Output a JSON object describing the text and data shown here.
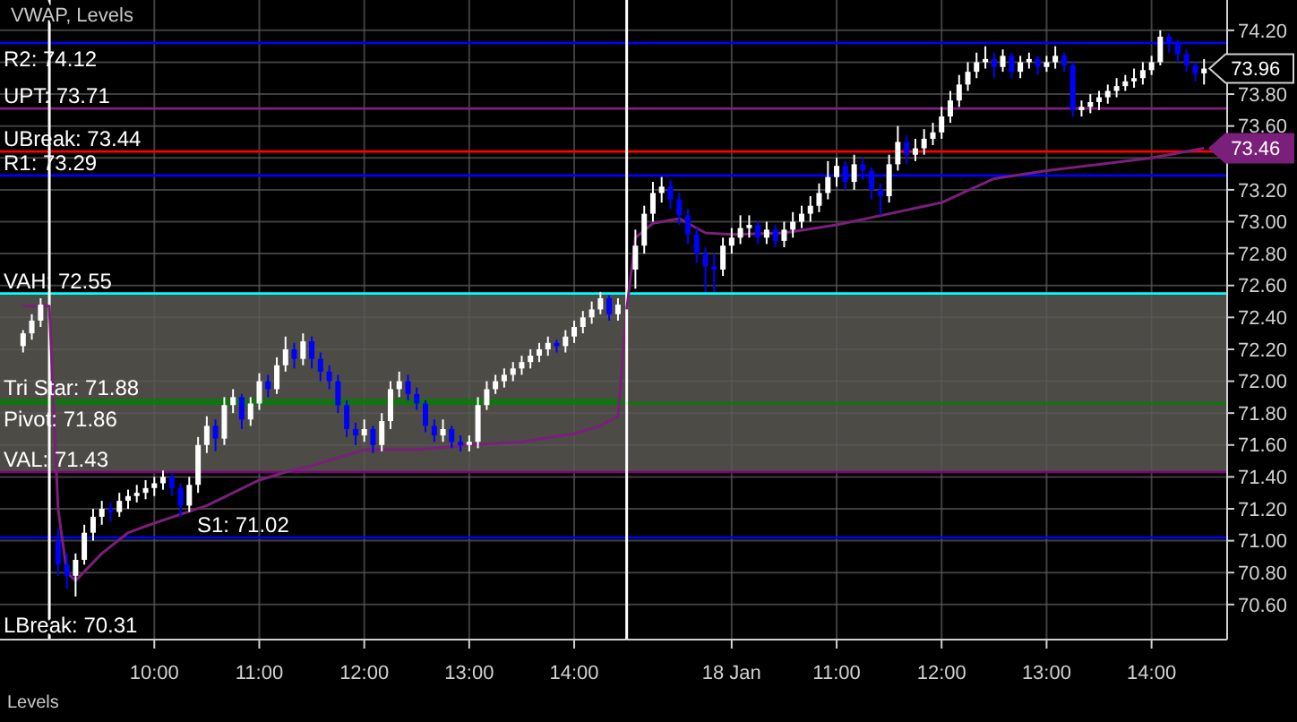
{
  "chart_data": [
    {
      "type": "candlestick",
      "title": "VWAP, Levels",
      "x": [
        8.75,
        8.833,
        8.917,
        9.083,
        9.167,
        9.25,
        9.333,
        9.417,
        9.5,
        9.583,
        9.667,
        9.75,
        9.833,
        9.917,
        10,
        10.083,
        10.167,
        10.25,
        10.333,
        10.417,
        10.5,
        10.583,
        10.667,
        10.75,
        10.833,
        10.917,
        11,
        11.083,
        11.167,
        11.25,
        11.333,
        11.417,
        11.5,
        11.583,
        11.667,
        11.75,
        11.833,
        11.917,
        12,
        12.083,
        12.167,
        12.25,
        12.333,
        12.417,
        12.5,
        12.583,
        12.667,
        12.75,
        12.833,
        12.917,
        13,
        13.083,
        13.167,
        13.25,
        13.333,
        13.417,
        13.5,
        13.583,
        13.667,
        13.75,
        13.833,
        13.917,
        14,
        14.083,
        14.167,
        14.25,
        14.333,
        14.417
      ],
      "ohlc": [
        [
          72.22,
          72.32,
          72.18,
          72.3
        ],
        [
          72.3,
          72.42,
          72.26,
          72.38
        ],
        [
          72.38,
          72.52,
          72.34,
          72.48
        ],
        [
          71.0,
          71.08,
          70.78,
          70.85
        ],
        [
          70.85,
          70.92,
          70.7,
          70.78
        ],
        [
          70.78,
          70.92,
          70.65,
          70.88
        ],
        [
          70.88,
          71.1,
          70.85,
          71.05
        ],
        [
          71.05,
          71.2,
          71.0,
          71.15
        ],
        [
          71.15,
          71.25,
          71.1,
          71.2
        ],
        [
          71.2,
          71.24,
          71.12,
          71.18
        ],
        [
          71.18,
          71.3,
          71.15,
          71.25
        ],
        [
          71.25,
          71.32,
          71.2,
          71.28
        ],
        [
          71.28,
          71.35,
          71.24,
          71.3
        ],
        [
          71.3,
          71.38,
          71.26,
          71.33
        ],
        [
          71.33,
          71.4,
          71.28,
          71.36
        ],
        [
          71.36,
          71.44,
          71.32,
          71.4
        ],
        [
          71.4,
          71.42,
          71.28,
          71.33
        ],
        [
          71.33,
          71.36,
          71.15,
          71.22
        ],
        [
          71.22,
          71.4,
          71.18,
          71.35
        ],
        [
          71.35,
          71.65,
          71.3,
          71.6
        ],
        [
          71.6,
          71.78,
          71.55,
          71.72
        ],
        [
          71.72,
          71.76,
          71.56,
          71.64
        ],
        [
          71.64,
          71.9,
          71.6,
          71.85
        ],
        [
          71.85,
          71.95,
          71.8,
          71.9
        ],
        [
          71.9,
          71.92,
          71.7,
          71.76
        ],
        [
          71.76,
          71.9,
          71.72,
          71.86
        ],
        [
          71.86,
          72.05,
          71.82,
          72.0
        ],
        [
          72.0,
          72.04,
          71.9,
          71.95
        ],
        [
          71.95,
          72.15,
          71.92,
          72.1
        ],
        [
          72.1,
          72.28,
          72.06,
          72.2
        ],
        [
          72.2,
          72.24,
          72.08,
          72.14
        ],
        [
          72.14,
          72.3,
          72.1,
          72.25
        ],
        [
          72.25,
          72.28,
          72.08,
          72.14
        ],
        [
          72.14,
          72.18,
          72.0,
          72.06
        ],
        [
          72.06,
          72.1,
          71.95,
          72.0
        ],
        [
          72.0,
          72.04,
          71.8,
          71.85
        ],
        [
          71.85,
          71.88,
          71.65,
          71.7
        ],
        [
          71.7,
          71.74,
          71.6,
          71.66
        ],
        [
          71.66,
          71.76,
          71.62,
          71.7
        ],
        [
          71.7,
          71.72,
          71.55,
          71.6
        ],
        [
          71.6,
          71.8,
          71.56,
          71.75
        ],
        [
          71.75,
          72.0,
          71.7,
          71.95
        ],
        [
          71.95,
          72.06,
          71.9,
          72.0
        ],
        [
          72.0,
          72.04,
          71.88,
          71.92
        ],
        [
          71.92,
          71.96,
          71.82,
          71.86
        ],
        [
          71.86,
          71.88,
          71.68,
          71.72
        ],
        [
          71.72,
          71.76,
          71.62,
          71.66
        ],
        [
          71.66,
          71.76,
          71.62,
          71.7
        ],
        [
          71.7,
          71.72,
          71.58,
          71.62
        ],
        [
          71.62,
          71.66,
          71.56,
          71.6
        ],
        [
          71.6,
          71.66,
          71.56,
          71.62
        ],
        [
          71.62,
          71.9,
          71.58,
          71.85
        ],
        [
          71.85,
          72.0,
          71.82,
          71.95
        ],
        [
          71.95,
          72.04,
          71.92,
          72.0
        ],
        [
          72.0,
          72.08,
          71.96,
          72.04
        ],
        [
          72.04,
          72.12,
          72.0,
          72.08
        ],
        [
          72.08,
          72.16,
          72.04,
          72.12
        ],
        [
          72.12,
          72.2,
          72.08,
          72.16
        ],
        [
          72.16,
          72.24,
          72.12,
          72.2
        ],
        [
          72.2,
          72.28,
          72.16,
          72.24
        ],
        [
          72.24,
          72.26,
          72.18,
          72.22
        ],
        [
          72.22,
          72.32,
          72.18,
          72.28
        ],
        [
          72.28,
          72.38,
          72.24,
          72.34
        ],
        [
          72.34,
          72.44,
          72.3,
          72.4
        ],
        [
          72.4,
          72.5,
          72.36,
          72.45
        ],
        [
          72.45,
          72.56,
          72.42,
          72.52
        ],
        [
          72.52,
          72.54,
          72.38,
          72.42
        ],
        [
          72.42,
          72.52,
          72.38,
          72.48
        ]
      ],
      "colors": [
        "#ffffff",
        "#ffffff",
        "#ffffff",
        "#0000ff",
        "#0000ff",
        "#ffffff",
        "#ffffff",
        "#ffffff",
        "#ffffff",
        "#0000ff",
        "#ffffff",
        "#ffffff",
        "#ffffff",
        "#ffffff",
        "#ffffff",
        "#ffffff",
        "#0000ff",
        "#0000ff",
        "#ffffff",
        "#ffffff",
        "#ffffff",
        "#0000ff",
        "#ffffff",
        "#ffffff",
        "#0000ff",
        "#ffffff",
        "#ffffff",
        "#0000ff",
        "#ffffff",
        "#ffffff",
        "#0000ff",
        "#ffffff",
        "#0000ff",
        "#0000ff",
        "#0000ff",
        "#0000ff",
        "#0000ff",
        "#0000ff",
        "#ffffff",
        "#0000ff",
        "#ffffff",
        "#ffffff",
        "#ffffff",
        "#0000ff",
        "#0000ff",
        "#0000ff",
        "#0000ff",
        "#ffffff",
        "#0000ff",
        "#0000ff",
        "#ffffff",
        "#ffffff",
        "#ffffff",
        "#ffffff",
        "#ffffff",
        "#ffffff",
        "#ffffff",
        "#ffffff",
        "#ffffff",
        "#ffffff",
        "#0000ff",
        "#ffffff",
        "#ffffff",
        "#ffffff",
        "#ffffff",
        "#ffffff",
        "#0000ff",
        "#ffffff"
      ],
      "series": [
        {
          "type": "line",
          "color": "#7a1f7a",
          "x": [
            8.75,
            8.917,
            9.0,
            9.083,
            9.167,
            9.25,
            9.5,
            9.75,
            10,
            10.5,
            11,
            11.25,
            11.5,
            12,
            12.5,
            13,
            13.5,
            14,
            14.25,
            14.417,
            14.5
          ],
          "values": [
            72.47,
            72.47,
            72.47,
            71.2,
            70.8,
            70.75,
            70.92,
            71.05,
            71.11,
            71.22,
            71.38,
            71.43,
            71.47,
            71.57,
            71.57,
            71.6,
            71.62,
            71.67,
            71.72,
            71.78,
            72.45
          ]
        }
      ],
      "xlim": [
        8.53,
        14.5
      ],
      "xticks": [
        {
          "value": 10,
          "label": "10:00"
        },
        {
          "value": 11,
          "label": "11:00"
        },
        {
          "value": 12,
          "label": "12:00"
        },
        {
          "value": 13,
          "label": "13:00"
        },
        {
          "value": 14,
          "label": "14:00"
        }
      ],
      "ylim": [
        70.38,
        74.39
      ],
      "yticks": [
        70.6,
        70.8,
        71,
        71.2,
        71.4,
        71.6,
        71.8,
        72,
        72.2,
        72.4,
        72.6,
        72.8,
        73,
        73.2,
        73.4,
        73.6,
        73.8,
        74,
        74.2
      ],
      "tick_labels": "x",
      "grid": true,
      "bands": [
        {
          "axis": "y",
          "from": 71.43,
          "to": 72.55,
          "color": "#4c4b45"
        }
      ],
      "ref_lines": [
        {
          "axis": "y",
          "value": 74.12,
          "label": "R2: 74.12",
          "color": "#0000ff"
        },
        {
          "axis": "y",
          "value": 73.71,
          "label": "UPT: 73.71",
          "color": "#7f1f7f"
        },
        {
          "axis": "y",
          "value": 73.44,
          "label": "UBreak: 73.44",
          "color": "#ff0000"
        },
        {
          "axis": "y",
          "value": 73.29,
          "label": "R1: 73.29",
          "color": "#0000ff"
        },
        {
          "axis": "y",
          "value": 72.55,
          "label": "VAH: 72.55",
          "color": "#00ffff"
        },
        {
          "axis": "y",
          "value": 71.88,
          "label": "Tri Star: 71.88",
          "color": "#008000"
        },
        {
          "axis": "y",
          "value": 71.86,
          "label": "Pivot: 71.86",
          "color": "#008000"
        },
        {
          "axis": "y",
          "value": 71.43,
          "label": "VAL: 71.43",
          "color": "#800080"
        },
        {
          "axis": "y",
          "value": 71.02,
          "label": "S1: 71.02",
          "color": "#0000ff"
        },
        {
          "axis": "x",
          "value": 9.0,
          "color": "#ffffff"
        }
      ],
      "annotations": [
        "LBreak: 70.31",
        "Levels"
      ]
    },
    {
      "type": "candlestick",
      "x": [
        9.083,
        9.167,
        9.25,
        9.333,
        9.417,
        9.5,
        9.583,
        9.667,
        9.75,
        9.833,
        9.917,
        10,
        10.083,
        10.167,
        10.25,
        10.333,
        10.417,
        10.5,
        10.583,
        10.667,
        10.75,
        10.833,
        10.917,
        11,
        11.083,
        11.167,
        11.25,
        11.333,
        11.417,
        11.5,
        11.583,
        11.667,
        11.75,
        11.833,
        11.917,
        12,
        12.083,
        12.167,
        12.25,
        12.333,
        12.417,
        12.5,
        12.583,
        12.667,
        12.75,
        12.833,
        12.917,
        13,
        13.083,
        13.167,
        13.25,
        13.333,
        13.417,
        13.5,
        13.583,
        13.667,
        13.75,
        13.833,
        13.917,
        14,
        14.083,
        14.167,
        14.25,
        14.333,
        14.417,
        14.5
      ],
      "ohlc": [
        [
          72.7,
          72.95,
          72.58,
          72.85
        ],
        [
          72.85,
          73.1,
          72.8,
          73.05
        ],
        [
          73.05,
          73.25,
          73.0,
          73.18
        ],
        [
          73.18,
          73.28,
          73.12,
          73.22
        ],
        [
          73.22,
          73.26,
          73.08,
          73.14
        ],
        [
          73.14,
          73.18,
          72.98,
          73.04
        ],
        [
          73.04,
          73.08,
          72.86,
          72.92
        ],
        [
          72.92,
          72.96,
          72.74,
          72.8
        ],
        [
          72.8,
          72.84,
          72.56,
          72.72
        ],
        [
          72.72,
          72.8,
          72.56,
          72.7
        ],
        [
          72.7,
          72.9,
          72.66,
          72.85
        ],
        [
          72.85,
          72.96,
          72.8,
          72.9
        ],
        [
          72.9,
          73.04,
          72.86,
          72.96
        ],
        [
          72.96,
          73.04,
          72.9,
          72.98
        ],
        [
          72.98,
          73.0,
          72.86,
          72.9
        ],
        [
          72.9,
          73.0,
          72.86,
          72.95
        ],
        [
          72.95,
          72.98,
          72.84,
          72.88
        ],
        [
          72.88,
          73.0,
          72.84,
          72.95
        ],
        [
          72.95,
          73.06,
          72.9,
          73.0
        ],
        [
          73.0,
          73.1,
          72.96,
          73.05
        ],
        [
          73.05,
          73.16,
          73.0,
          73.1
        ],
        [
          73.1,
          73.24,
          73.06,
          73.18
        ],
        [
          73.18,
          73.38,
          73.14,
          73.28
        ],
        [
          73.28,
          73.4,
          73.22,
          73.35
        ],
        [
          73.35,
          73.38,
          73.2,
          73.25
        ],
        [
          73.25,
          73.42,
          73.2,
          73.36
        ],
        [
          73.36,
          73.4,
          73.26,
          73.32
        ],
        [
          73.32,
          73.34,
          73.14,
          73.2
        ],
        [
          73.2,
          73.24,
          73.04,
          73.16
        ],
        [
          73.16,
          73.42,
          73.12,
          73.36
        ],
        [
          73.36,
          73.6,
          73.32,
          73.5
        ],
        [
          73.5,
          73.54,
          73.36,
          73.42
        ],
        [
          73.42,
          73.52,
          73.38,
          73.46
        ],
        [
          73.46,
          73.58,
          73.42,
          73.52
        ],
        [
          73.52,
          73.62,
          73.48,
          73.56
        ],
        [
          73.56,
          73.72,
          73.52,
          73.66
        ],
        [
          73.66,
          73.82,
          73.62,
          73.76
        ],
        [
          73.76,
          73.92,
          73.72,
          73.86
        ],
        [
          73.86,
          74.0,
          73.82,
          73.94
        ],
        [
          73.94,
          74.06,
          73.9,
          74.0
        ],
        [
          74.0,
          74.1,
          73.96,
          74.02
        ],
        [
          74.02,
          74.06,
          73.9,
          73.97
        ],
        [
          73.97,
          74.08,
          73.94,
          74.04
        ],
        [
          74.04,
          74.06,
          73.9,
          73.94
        ],
        [
          73.94,
          74.04,
          73.9,
          74.0
        ],
        [
          74.0,
          74.06,
          73.96,
          74.02
        ],
        [
          74.02,
          74.04,
          73.92,
          73.97
        ],
        [
          73.97,
          74.04,
          73.94,
          74.0
        ],
        [
          74.0,
          74.1,
          73.96,
          74.04
        ],
        [
          74.04,
          74.06,
          73.94,
          73.98
        ],
        [
          73.98,
          74.0,
          73.66,
          73.7
        ],
        [
          73.7,
          73.76,
          73.66,
          73.72
        ],
        [
          73.72,
          73.8,
          73.68,
          73.75
        ],
        [
          73.75,
          73.82,
          73.7,
          73.78
        ],
        [
          73.78,
          73.86,
          73.74,
          73.82
        ],
        [
          73.82,
          73.9,
          73.78,
          73.85
        ],
        [
          73.85,
          73.92,
          73.82,
          73.88
        ],
        [
          73.88,
          73.96,
          73.84,
          73.9
        ],
        [
          73.9,
          74.0,
          73.86,
          73.95
        ],
        [
          73.95,
          74.04,
          73.92,
          74.0
        ],
        [
          74.0,
          74.2,
          73.98,
          74.16
        ],
        [
          74.16,
          74.18,
          74.06,
          74.12
        ],
        [
          74.12,
          74.14,
          74.0,
          74.05
        ],
        [
          74.05,
          74.08,
          73.94,
          73.98
        ],
        [
          73.98,
          74.0,
          73.88,
          73.93
        ],
        [
          73.93,
          74.02,
          73.86,
          73.96
        ]
      ],
      "colors": [
        "#ffffff",
        "#ffffff",
        "#ffffff",
        "#ffffff",
        "#0000ff",
        "#0000ff",
        "#0000ff",
        "#0000ff",
        "#0000ff",
        "#0000ff",
        "#ffffff",
        "#ffffff",
        "#ffffff",
        "#ffffff",
        "#0000ff",
        "#ffffff",
        "#0000ff",
        "#ffffff",
        "#ffffff",
        "#ffffff",
        "#ffffff",
        "#ffffff",
        "#ffffff",
        "#ffffff",
        "#0000ff",
        "#ffffff",
        "#0000ff",
        "#0000ff",
        "#0000ff",
        "#ffffff",
        "#ffffff",
        "#0000ff",
        "#ffffff",
        "#ffffff",
        "#ffffff",
        "#ffffff",
        "#ffffff",
        "#ffffff",
        "#ffffff",
        "#ffffff",
        "#ffffff",
        "#0000ff",
        "#ffffff",
        "#0000ff",
        "#ffffff",
        "#ffffff",
        "#0000ff",
        "#ffffff",
        "#ffffff",
        "#0000ff",
        "#0000ff",
        "#ffffff",
        "#ffffff",
        "#ffffff",
        "#ffffff",
        "#ffffff",
        "#ffffff",
        "#ffffff",
        "#ffffff",
        "#ffffff",
        "#ffffff",
        "#0000ff",
        "#0000ff",
        "#0000ff",
        "#0000ff",
        "#ffffff"
      ],
      "series": [
        {
          "type": "line",
          "color": "#7a1f7a",
          "x": [
            9.0,
            9.083,
            9.25,
            9.5,
            9.75,
            10,
            10.5,
            11,
            11.5,
            12,
            12.5,
            13,
            13.5,
            14,
            14.5
          ],
          "values": [
            72.45,
            72.9,
            72.99,
            73.02,
            72.93,
            72.92,
            72.93,
            72.98,
            73.05,
            73.12,
            73.27,
            73.32,
            73.36,
            73.4,
            73.46
          ]
        }
      ],
      "xlim": [
        9.0,
        14.72
      ],
      "xticks": [
        {
          "value": 10,
          "label": "18 Jan"
        },
        {
          "value": 11,
          "label": "11:00"
        },
        {
          "value": 12,
          "label": "12:00"
        },
        {
          "value": 13,
          "label": "13:00"
        },
        {
          "value": 14,
          "label": "14:00"
        }
      ],
      "ylim": [
        70.38,
        74.39
      ],
      "yticks": [
        {
          "value": 70.6,
          "label": "70.60"
        },
        {
          "value": 70.8,
          "label": "70.80"
        },
        {
          "value": 71,
          "label": "71.00"
        },
        {
          "value": 71.2,
          "label": "71.20"
        },
        {
          "value": 71.4,
          "label": "71.40"
        },
        {
          "value": 71.6,
          "label": "71.60"
        },
        {
          "value": 71.8,
          "label": "71.80"
        },
        {
          "value": 72,
          "label": "72.00"
        },
        {
          "value": 72.2,
          "label": "72.20"
        },
        {
          "value": 72.4,
          "label": "72.40"
        },
        {
          "value": 72.6,
          "label": "72.60"
        },
        {
          "value": 72.8,
          "label": "72.80"
        },
        {
          "value": 73,
          "label": "73.00"
        },
        {
          "value": 73.2,
          "label": "73.20"
        },
        {
          "value": 73.4,
          "label": null
        },
        {
          "value": 73.6,
          "label": "73.60"
        },
        {
          "value": 73.8,
          "label": "73.80"
        },
        {
          "value": 74,
          "label": null
        },
        {
          "value": 74.2,
          "label": "74.20"
        }
      ],
      "grid": true,
      "bands": [
        {
          "axis": "y",
          "from": 71.43,
          "to": 72.55,
          "color": "#4c4b45"
        }
      ],
      "ref_lines": [
        {
          "axis": "y",
          "value": 74.12,
          "color": "#0000ff"
        },
        {
          "axis": "y",
          "value": 73.71,
          "color": "#7f1f7f"
        },
        {
          "axis": "y",
          "value": 73.44,
          "color": "#ff0000"
        },
        {
          "axis": "y",
          "value": 73.29,
          "color": "#0000ff"
        },
        {
          "axis": "y",
          "value": 72.55,
          "color": "#00ffff"
        },
        {
          "axis": "y",
          "value": 71.86,
          "color": "#008000"
        },
        {
          "axis": "y",
          "value": 71.43,
          "color": "#800080"
        },
        {
          "axis": "y",
          "value": 71.02,
          "color": "#0000ff"
        },
        {
          "axis": "x",
          "value": 9.0,
          "color": "#ffffff"
        }
      ],
      "annotations": [
        {
          "text": "73.96",
          "x": 14.5,
          "y": 73.96
        },
        {
          "text": "73.46",
          "x": 14.5,
          "y": 73.46
        }
      ]
    }
  ]
}
